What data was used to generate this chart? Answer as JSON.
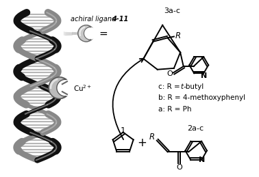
{
  "background_color": "#ffffff",
  "figsize": [
    3.78,
    2.59
  ],
  "dpi": 100,
  "compounds": {
    "diene_label": "1",
    "dienophile_label": "2a-c",
    "product_label": "3a-c",
    "cu_label": "Cu$^{2+}$",
    "ligand_label": "achiral ligand 4-11",
    "substituents": [
      "a: R = Ph",
      "b: R = 4-methoxyphenyl",
      "c: R = $\\it{t}$-butyl"
    ]
  },
  "colors": {
    "black": "#000000",
    "white": "#ffffff",
    "gray_dark": "#222222",
    "gray_mid": "#777777",
    "gray_light": "#cccccc",
    "dna_strand1": "#111111",
    "dna_strand2": "#999999",
    "dna_rung": "#555555"
  }
}
